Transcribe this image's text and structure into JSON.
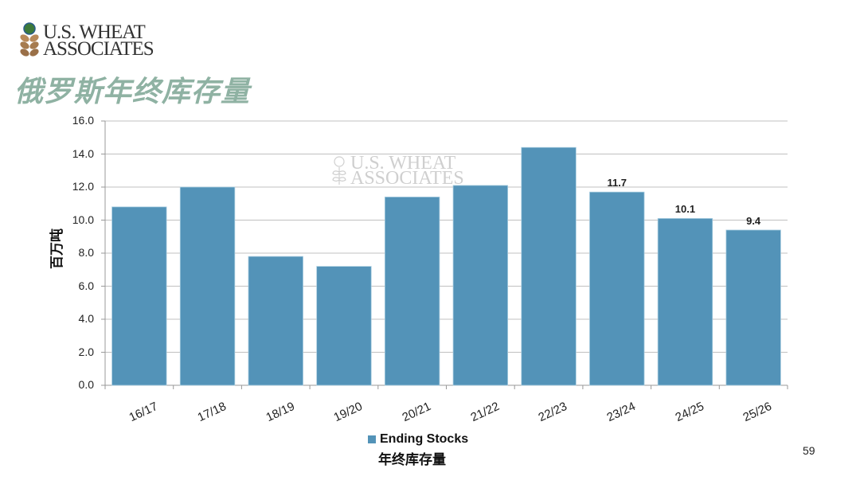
{
  "header": {
    "logo_line1": "U.S. WHEAT",
    "logo_line2": "ASSOCIATES",
    "title": "俄罗斯年终库存量"
  },
  "watermark": {
    "line1": "U.S. WHEAT",
    "line2": "ASSOCIATES"
  },
  "colors": {
    "bar": "#5393b8",
    "title": "#8fb2a3",
    "grid": "#c0c0c0"
  },
  "page_number": "59",
  "chart_data": {
    "type": "bar",
    "title": "俄罗斯年终库存量",
    "xlabel": "",
    "ylabel": "百万吨",
    "ylim": [
      0,
      16
    ],
    "yticks": [
      "0.0",
      "2.0",
      "4.0",
      "6.0",
      "8.0",
      "10.0",
      "12.0",
      "14.0",
      "16.0"
    ],
    "grid": true,
    "legend_position": "bottom",
    "categories": [
      "16/17",
      "17/18",
      "18/19",
      "19/20",
      "20/21",
      "21/22",
      "22/23",
      "23/24",
      "24/25",
      "25/26"
    ],
    "series": [
      {
        "name": "Ending Stocks 年终库存量",
        "values": [
          10.8,
          12.0,
          7.8,
          7.2,
          11.4,
          12.1,
          14.4,
          11.7,
          10.1,
          9.4
        ]
      }
    ],
    "data_labels": [
      null,
      null,
      null,
      null,
      null,
      null,
      null,
      "11.7",
      "10.1",
      "9.4"
    ],
    "legend": {
      "label_en": "Ending Stocks",
      "label_zh": "年终库存量"
    }
  }
}
